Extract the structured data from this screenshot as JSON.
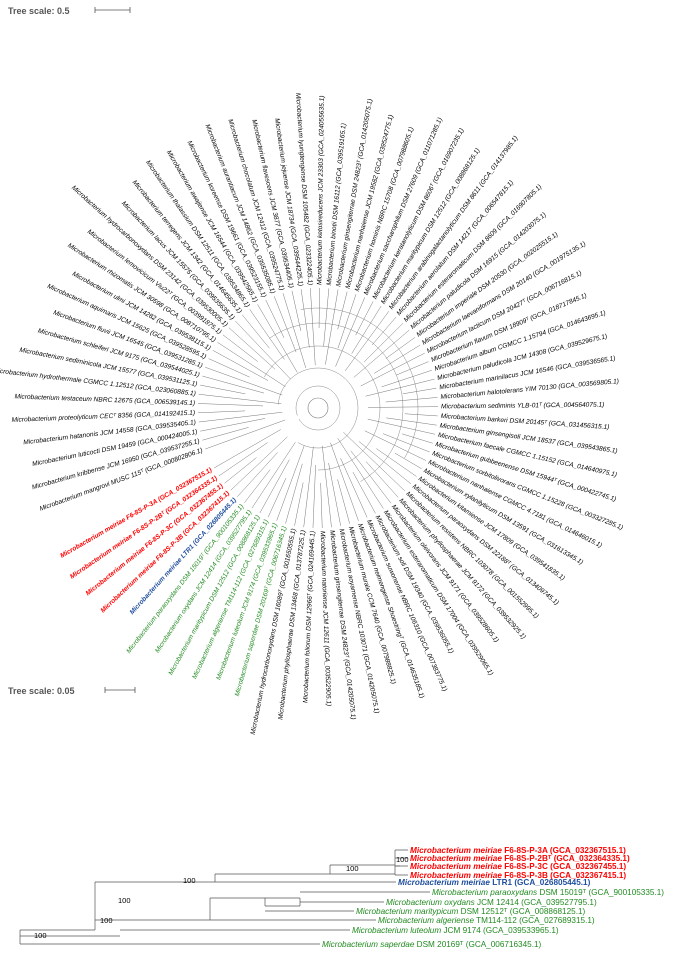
{
  "circular_tree": {
    "scale_label": "Tree scale: 0.5",
    "colors": {
      "default": "#000000",
      "red": "#ff0000",
      "green": "#228b22",
      "blue": "#1f4e9e"
    },
    "leaves": [
      {
        "label": "Microbacterium mangrovi MUSC 115ᵀ (GCA_000802806.1)",
        "color": "default"
      },
      {
        "label": "Microbacterium kribbense JCM 16950 (GCA_039537255.1)",
        "color": "default"
      },
      {
        "label": "Microbacterium luticocti DSM 19459 (GCA_000424005.1)",
        "color": "default"
      },
      {
        "label": "Microbacterium hatanonis JCM 14558 (GCA_039535405.1)",
        "color": "default"
      },
      {
        "label": "Microbacterium proteolyticum CECᵀ 8356 (GCA_014192415.1)",
        "color": "default"
      },
      {
        "label": "Microbacterium testaceum NBRC 12675 (GCA_006539145.1)",
        "color": "default"
      },
      {
        "label": "Microbacterium hydrothermale CGMCC 1.12512 (GCA_023060885.1)",
        "color": "default"
      },
      {
        "label": "Microbacterium sediminicola JCM 15577 (GCA_039531125.1)",
        "color": "default"
      },
      {
        "label": "Microbacterium schleiferi JCM 9175 (GCA_039544025.1)",
        "color": "default"
      },
      {
        "label": "Microbacterium fluvii JCM 16545 (GCA_039531285.1)",
        "color": "default"
      },
      {
        "label": "Microbacterium aquimaris JCM 15625 (GCA_039528595.1)",
        "color": "default"
      },
      {
        "label": "Microbacterium ulmi JCM 14282 (GCA_039538115.1)",
        "color": "default"
      },
      {
        "label": "Microbacterium rhizomatis JCM 30598 (GCA_008710795.1)",
        "color": "default"
      },
      {
        "label": "Microbacterium lemovicicum Viu22ᵀ (GCA_003991875.1)",
        "color": "default"
      },
      {
        "label": "Microbacterium hydrocarbonoxydans DSM 23142 (GCA_039530005.1)",
        "color": "default"
      },
      {
        "label": "Microbacterium lacus JCM 15575 (GCA_039535635.1)",
        "color": "default"
      },
      {
        "label": "Microbacterium terregens JCM 1342 (GCA_014645635.1)",
        "color": "default"
      },
      {
        "label": "Microbacterium thalassium DSM 12511 (GCA_039534865.1)",
        "color": "default"
      },
      {
        "label": "Microbacterium awajiense JCM 16544 (GCA_039542565.1)",
        "color": "default"
      },
      {
        "label": "Microbacterium koreense DSM 19661 (GCA_039523155.1)",
        "color": "default"
      },
      {
        "label": "Microbacterium aurantiacum JCM 14862 (GCA_039535085.1)",
        "color": "default"
      },
      {
        "label": "Microbacterium chocolatum JCM 12412 (GCA_039524775.1)",
        "color": "default"
      },
      {
        "label": "Microbacterium flavescens JCM 3877 (GCA_039534405.1)",
        "color": "default"
      },
      {
        "label": "Microbacterium jejuense JCM 18734 (GCA_039544225.1)",
        "color": "default"
      },
      {
        "label": "Microbacterium lyungtengense DSM 105482 (GCA_023322405.1)",
        "color": "default"
      },
      {
        "label": "Microbacterium ketosireducens JCM 23303 (GCA_024055635.1)",
        "color": "default"
      },
      {
        "label": "Microbacterium binotii DSM 16112 (GCA_039519165.1)",
        "color": "default"
      },
      {
        "label": "Microbacterium ginsengiterrae DSM 24823ᵀ (GCA_014205075.1)",
        "color": "default"
      },
      {
        "label": "Microbacterium nanhaiense JCM 19582 (GCA_039524775.1)",
        "color": "default"
      },
      {
        "label": "Microbacterium hominis NBRC 15708 (GCA_007988605.1)",
        "color": "default"
      },
      {
        "label": "Microbacterium saccharophilum DSM 27609 (GCA_011071285.1)",
        "color": "default"
      },
      {
        "label": "Microbacterium keratanolyticum DSM 8606ᵀ (GCA_016907235.1)",
        "color": "default"
      },
      {
        "label": "Microbacterium maritypicum DSM 12512 (GCA_008868125.1)",
        "color": "default"
      },
      {
        "label": "Microbacterium arabinogalactanolyticum DSM 8611 (GCA_014137985.1)",
        "color": "default"
      },
      {
        "label": "Microbacterium aerolatum DSM 14217 (GCA_006547815.1)",
        "color": "default"
      },
      {
        "label": "Microbacterium esteraromaticum DSM 8609 (GCA_016907805.1)",
        "color": "default"
      },
      {
        "label": "Microbacterium paludicola DSM 16915 (GCA_014203075.1)",
        "color": "default"
      },
      {
        "label": "Microbacterium imperiale DSM 20530 (GCA_002025515.1)",
        "color": "default"
      },
      {
        "label": "Microbacterium laevaniformans DSM 20140 (GCA_001975135.1)",
        "color": "default"
      },
      {
        "label": "Microbacterium lacticum DSM 20427ᵀ (GCA_006716815.1)",
        "color": "default"
      },
      {
        "label": "Microbacterium flavum DSM 18909ᵀ (GCA_018717845.1)",
        "color": "default"
      },
      {
        "label": "Microbacterium album CGMCC 1.15794 (GCA_014643695.1)",
        "color": "default"
      },
      {
        "label": "Microbacterium paludicola JCM 14308 (GCA_039529675.1)",
        "color": "default"
      },
      {
        "label": "Microbacterium marinilacus JCM 16546 (GCA_039536565.1)",
        "color": "default"
      },
      {
        "label": "Microbacterium halotolerans YIM 70130 (GCA_003569805.1)",
        "color": "default"
      },
      {
        "label": "Microbacterium sediminis YLB-01ᵀ (GCA_004564075.1)",
        "color": "default"
      },
      {
        "label": "Microbacterium barkeri DSM 20145ᵀ (GCA_031456315.1)",
        "color": "default"
      },
      {
        "label": "Microbacterium ginsengisoli JCM 18537 (GCA_039543865.1)",
        "color": "default"
      },
      {
        "label": "Microbacterium faecale CGMCC 1.15152 (GCA_014640975.1)",
        "color": "default"
      },
      {
        "label": "Microbacterium gubbeenense DSM 15944ᵀ (GCA_000422745.1)",
        "color": "default"
      },
      {
        "label": "Microbacterium sorbitolivorans CGMCC 1.15228 (GCA_003327285.1)",
        "color": "default"
      },
      {
        "label": "Microbacterium nanhaiense CGMCC 4.7181 (GCA_014646015.1)",
        "color": "default"
      },
      {
        "label": "Microbacterium xylanilyticum DSM 13591 (GCA_031613345.1)",
        "color": "default"
      },
      {
        "label": "Microbacterium kitamiense JCM 17809 (GCA_039541835.1)",
        "color": "default"
      },
      {
        "label": "Microbacterium paraoxydans DSM 22188ᵀ (GCA_013409745.1)",
        "color": "default"
      },
      {
        "label": "Microbacterium resistens NBRC 103078 (GCA_001552995.1)",
        "color": "default"
      },
      {
        "label": "Microbacterium phyllosphaerae JCM 9172 (GCA_039532925.1)",
        "color": "default"
      },
      {
        "label": "Microbacterium oleivorans JCM 9171 (GCA_039528605.1)",
        "color": "default"
      },
      {
        "label": "Microbacterium esteraromaticum DSM 17004 (GCA_039529065.1)",
        "color": "default"
      },
      {
        "label": "Microbacterium soli DSM 19340 (GCA_039536055.1)",
        "color": "default"
      },
      {
        "label": "Microbacterium suwonense NBRC 106310 (GCA_007383775.1)",
        "color": "default"
      },
      {
        "label": "Microbacterium neimengense Shoestringᵀ (GCA_014635185.1)",
        "color": "default"
      },
      {
        "label": "Microbacterium murale CCM 7640 (GCA_007988825.1)",
        "color": "default"
      },
      {
        "label": "Microbacterium aoyamense NBRC 103071 (GCA_014205075.1)",
        "color": "default"
      },
      {
        "label": "Microbacterium ginsengiterrae DSM 24823ᵀ (GCA_014205075.1)",
        "color": "default"
      },
      {
        "label": "Microbacterium natoriense JCM 12611 (GCA_003522905.1)",
        "color": "default"
      },
      {
        "label": "Microbacterium foliorum DSM 12966ᵀ (GCA_024169445.1)",
        "color": "default"
      },
      {
        "label": "Microbacterium phyllosphaerae DSM 13468 (GCA_013787225.1)",
        "color": "default"
      },
      {
        "label": "Microbacterium hydrocarbonoxydans DSM 16089ᵀ (GCA_001650555.1)",
        "color": "default"
      },
      {
        "label": "Microbacterium saperdae DSM 20169ᵀ (GCA_006716345.1)",
        "color": "green"
      },
      {
        "label": "Microbacterium luteolum JCM 9174 (GCA_039533965.1)",
        "color": "green"
      },
      {
        "label": "Microbacterium algeriense TM114-112 (GCA_027689315.1)",
        "color": "green"
      },
      {
        "label": "Microbacterium maritypicum DSM 12512 (GCA_008868125.1)",
        "color": "green"
      },
      {
        "label": "Microbacterium oxydans JCM 12414 (GCA_039527795.1)",
        "color": "green"
      },
      {
        "label": "Microbacterium paraoxydans DSM 15019ᵀ (GCA_900105335.1)",
        "color": "green"
      },
      {
        "label": "Microbacterium meiriae LTR1 (GCA_026805445.1)",
        "color": "blue"
      },
      {
        "label": "Microbacterium meiriae F6-8S-P-3B (GCA_032367415.1)",
        "color": "red"
      },
      {
        "label": "Microbacterium meiriae F6-8S-P-3C (GCA_032367455.1)",
        "color": "red"
      },
      {
        "label": "Microbacterium meiriae F6-8S-P-2Bᵀ (GCA_032364335.1)",
        "color": "red"
      },
      {
        "label": "Microbacterium meiriae F6-8S-P-3A (GCA_032367515.1)",
        "color": "red"
      }
    ]
  },
  "rect_tree": {
    "scale_label": "Tree scale: 0.05",
    "leaves": [
      {
        "genus": "Microbacterium",
        "strain": "meiriae F6-8S-P-3A",
        "acc": "(GCA_032367515.1)",
        "color": "#ff0000",
        "bold": true
      },
      {
        "genus": "Microbacterium",
        "strain": "meiriae F6-8S-P-2Bᵀ",
        "acc": "(GCA_032364335.1)",
        "color": "#ff0000",
        "bold": true
      },
      {
        "genus": "Microbacterium",
        "strain": "meiriae F6-8S-P-3C",
        "acc": "(GCA_032367455.1)",
        "color": "#ff0000",
        "bold": true
      },
      {
        "genus": "Microbacterium",
        "strain": "meiriae F6-8S-P-3B",
        "acc": "(GCA_032367415.1)",
        "color": "#ff0000",
        "bold": true
      },
      {
        "genus": "Microbacterium",
        "strain": "meiriae LTR1",
        "acc": "(GCA_026805445.1)",
        "color": "#1f4e9e",
        "bold": true
      },
      {
        "genus": "Microbacterium",
        "strain": "paraoxydans DSM 15019ᵀ",
        "acc": "(GCA_900105335.1)",
        "color": "#228b22",
        "bold": false
      },
      {
        "genus": "Microbacterium",
        "strain": "oxydans JCM 12414",
        "acc": "(GCA_039527795.1)",
        "color": "#228b22",
        "bold": false
      },
      {
        "genus": "Microbacterium",
        "strain": "maritypicum DSM 12512ᵀ",
        "acc": "(GCA_008868125.1)",
        "color": "#228b22",
        "bold": false
      },
      {
        "genus": "Microbacterium",
        "strain": "algeriense TM114-112",
        "acc": "(GCA_027689315.1)",
        "color": "#228b22",
        "bold": false
      },
      {
        "genus": "Microbacterium",
        "strain": "luteolum JCM 9174",
        "acc": "(GCA_039533965.1)",
        "color": "#228b22",
        "bold": false
      },
      {
        "genus": "Microbacterium",
        "strain": "saperdae DSM 20169ᵀ",
        "acc": "(GCA_006716345.1)",
        "color": "#228b22",
        "bold": false
      }
    ],
    "bootstrap": [
      "100",
      "100",
      "100",
      "100",
      "100",
      "100"
    ]
  }
}
